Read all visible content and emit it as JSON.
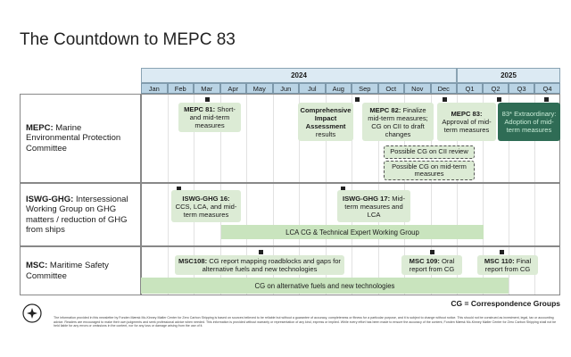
{
  "title": "The Countdown to MEPC 83",
  "header": {
    "years": [
      "2024",
      "2025"
    ],
    "periods": [
      "Jan",
      "Feb",
      "Mar",
      "Apr",
      "May",
      "Jun",
      "Jul",
      "Aug",
      "Sep",
      "Oct",
      "Nov",
      "Dec",
      "Q1",
      "Q2",
      "Q3",
      "Q4"
    ]
  },
  "rows": [
    {
      "label_bold": "MEPC:",
      "label": " Marine Environmental Protection Committee",
      "events": [
        {
          "bold": "MEPC 81:",
          "text": " Short- and mid-term measures"
        },
        {
          "bold": "Comprehensive Impact Assessment",
          "text": " results"
        },
        {
          "bold": "MEPC 82:",
          "text": " Finalize mid-term measures; CG on CII to draft changes"
        },
        {
          "bold": "MEPC 83:",
          "text": " Approval of mid-term measures"
        },
        {
          "text": "83* Extraordinary: Adoption of mid-term measures"
        }
      ],
      "groups": [
        "Possible CG on CII review",
        "Possible CG on mid-term measures"
      ]
    },
    {
      "label_bold": "ISWG-GHG:",
      "label": " Intersessional Working Group on GHG matters / reduction of GHG from ships",
      "events": [
        {
          "bold": "ISWG-GHG 16:",
          "text": " CCS, LCA, and mid-term measures"
        },
        {
          "bold": "ISWG-GHG 17:",
          "text": " Mid-term measures and LCA"
        }
      ],
      "groups": [
        "LCA CG & Technical Expert Working Group"
      ]
    },
    {
      "label_bold": "MSC:",
      "label": " Maritime Safety Committee",
      "events": [
        {
          "bold": "MSC108:",
          "text": " CG report mapping roadblocks and gaps for alternative fuels and new technologies"
        },
        {
          "bold": "MSC 109:",
          "text": " Oral report from CG"
        },
        {
          "bold": "MSC 110:",
          "text": " Final report from CG"
        }
      ],
      "groups": [
        "CG on alternative fuels and new technologies"
      ]
    }
  ],
  "legend": "CG = Correspondence Groups",
  "disclaimer": "The information provided in this newsletter by Fonden Mærsk Mc-Kinney Møller Center for Zero Carbon Shipping is based on sources believed to be reliable but without a guarantee of accuracy, completeness or fitness for a particular purpose, and it is subject to change without notice. This should not be construed as investment, legal, tax or accounting advice. Readers are encouraged to make their own judgments and seek professional advice when needed. This information is provided without warranty or representation of any kind, express or implied. While every effort has been made to ensure the accuracy of the content, Fonden Mærsk Mc-Kinney Møller Center for Zero Carbon Shipping shall not be held liable for any errors or omissions in the content, nor for any loss or damage arising from the use of it."
}
